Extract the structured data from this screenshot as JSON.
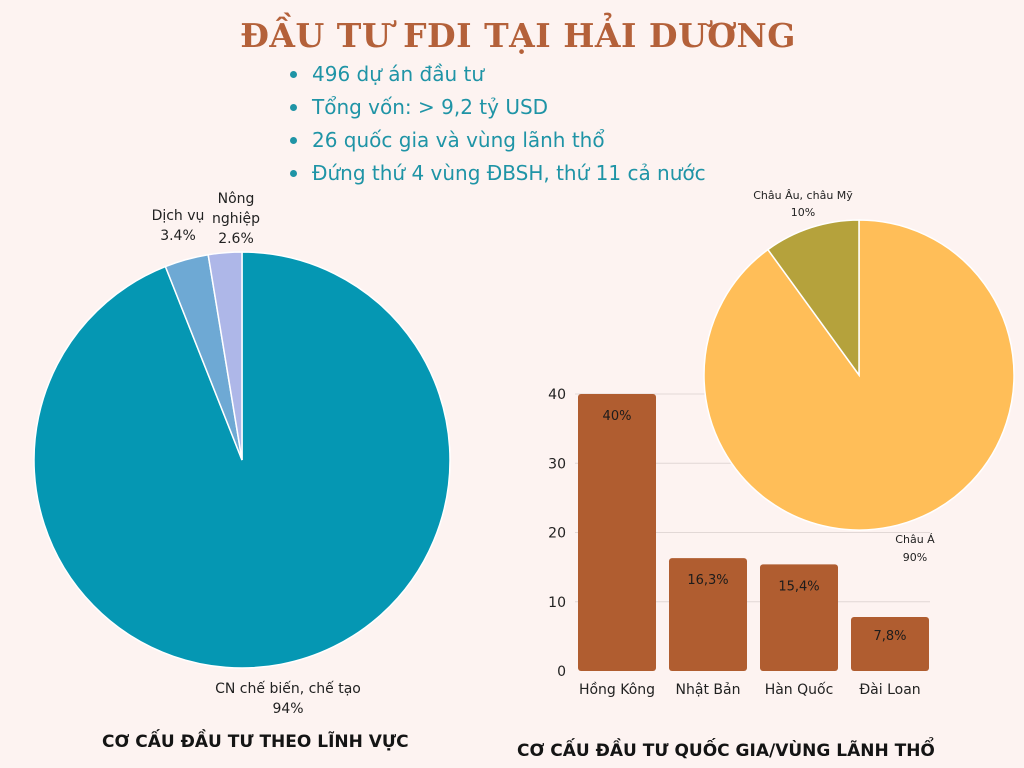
{
  "title": "ĐẦU TƯ FDI TẠI HẢI DƯƠNG",
  "facts": [
    "496 dự án đầu tư",
    "Tổng vốn: > 9,2 tỷ USD",
    "26 quốc gia và vùng lãnh thổ",
    "Đứng thứ 4 vùng ĐBSH, thứ 11 cả nước"
  ],
  "colors": {
    "title": "#b4613a",
    "facts": "#1f94a6",
    "bars": "#b05d30"
  },
  "chart_data": [
    {
      "type": "pie",
      "caption": "CƠ CẤU ĐẦU TƯ THEO LĨNH VỰC",
      "slices": [
        {
          "label": "CN chế biến, chế tạo",
          "value": 94,
          "value_label": "94%",
          "color": "#0597b3"
        },
        {
          "label": "Dịch vụ",
          "value": 3.4,
          "value_label": "3.4%",
          "color": "#6ea9d4"
        },
        {
          "label": "Nông nghiệp",
          "value": 2.6,
          "value_label": "2.6%",
          "color": "#aeb7e8"
        }
      ]
    },
    {
      "type": "bar",
      "caption": "CƠ CẤU ĐẦU TƯ QUỐC GIA/VÙNG LÃNH THỔ",
      "categories": [
        "Hồng Kông",
        "Nhật Bản",
        "Hàn Quốc",
        "Đài Loan"
      ],
      "values": [
        40,
        16.3,
        15.4,
        7.8
      ],
      "data_labels": [
        "40%",
        "16,3%",
        "15,4%",
        "7,8%"
      ],
      "ylim": [
        0,
        40
      ],
      "yticks": [
        "0",
        "10",
        "20",
        "30",
        "40"
      ],
      "grid": true
    },
    {
      "type": "pie",
      "slices": [
        {
          "label": "Châu Á",
          "value": 90,
          "value_label": "90%",
          "color": "#ffbe58"
        },
        {
          "label": "Châu Âu, châu Mỹ",
          "value": 10,
          "value_label": "10%",
          "color": "#b5a23c"
        }
      ]
    }
  ]
}
